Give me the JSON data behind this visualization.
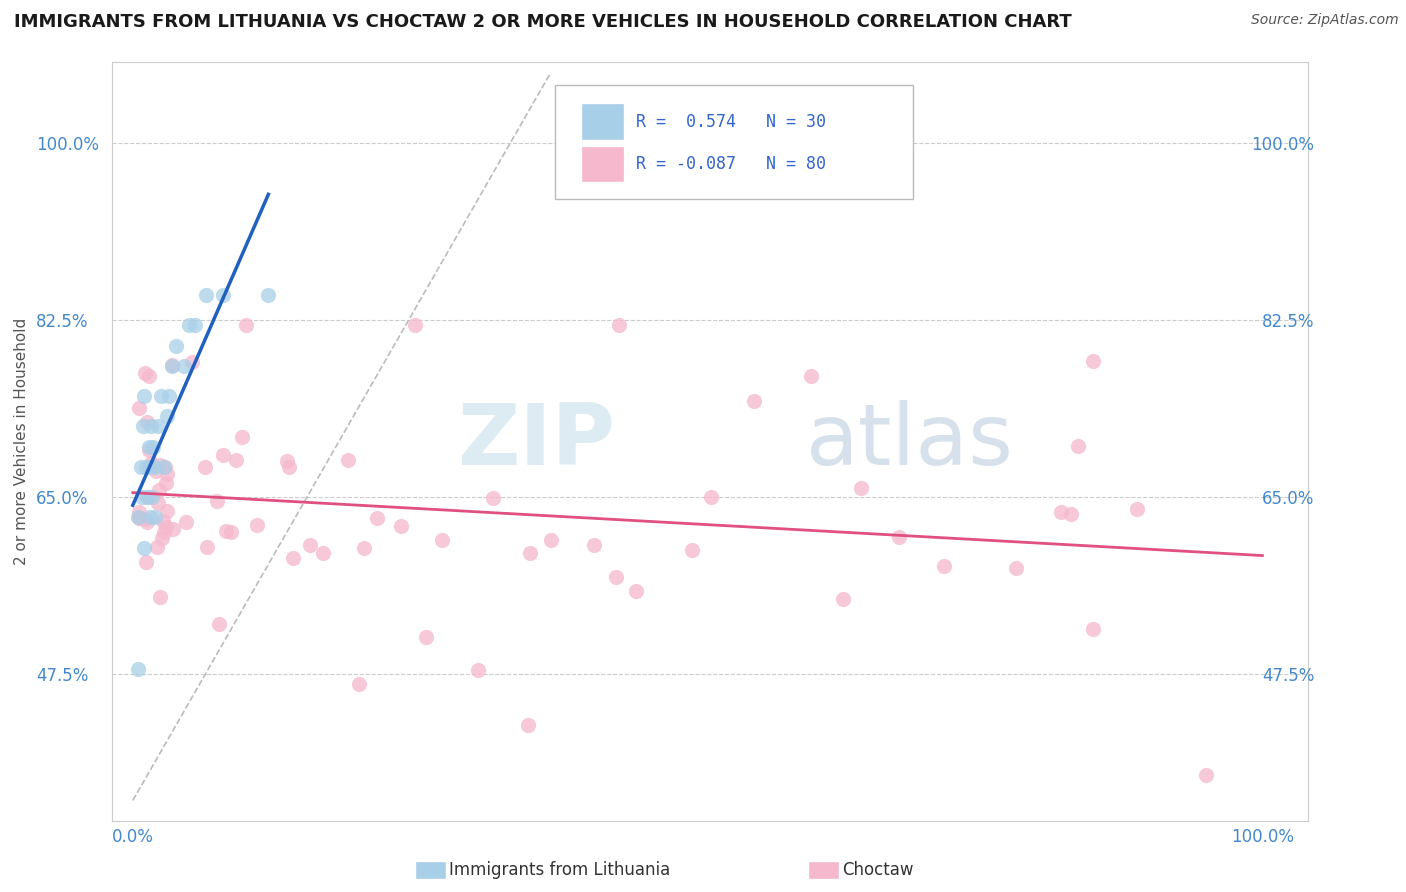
{
  "title": "IMMIGRANTS FROM LITHUANIA VS CHOCTAW 2 OR MORE VEHICLES IN HOUSEHOLD CORRELATION CHART",
  "source": "Source: ZipAtlas.com",
  "ylabel": "2 or more Vehicles in Household",
  "x_tick_labels": [
    "0.0%",
    "100.0%"
  ],
  "y_tick_labels": [
    "47.5%",
    "65.0%",
    "82.5%",
    "100.0%"
  ],
  "y_tick_positions": [
    0.475,
    0.65,
    0.825,
    1.0
  ],
  "watermark": "ZIPatlas",
  "legend_r1": "R =  0.574",
  "legend_n1": "N = 30",
  "legend_r2": "R = -0.087",
  "legend_n2": "N = 80",
  "color_blue": "#a8cfe8",
  "color_pink": "#f5b8cc",
  "line_blue": "#2060c0",
  "line_pink": "#e05080",
  "background": "#ffffff",
  "scatter_alpha": 0.75,
  "scatter_size": 120,
  "tick_color": "#4488cc",
  "label_color": "#555555",
  "grid_color": "#cccccc",
  "diag_color": "#bbbbbb"
}
